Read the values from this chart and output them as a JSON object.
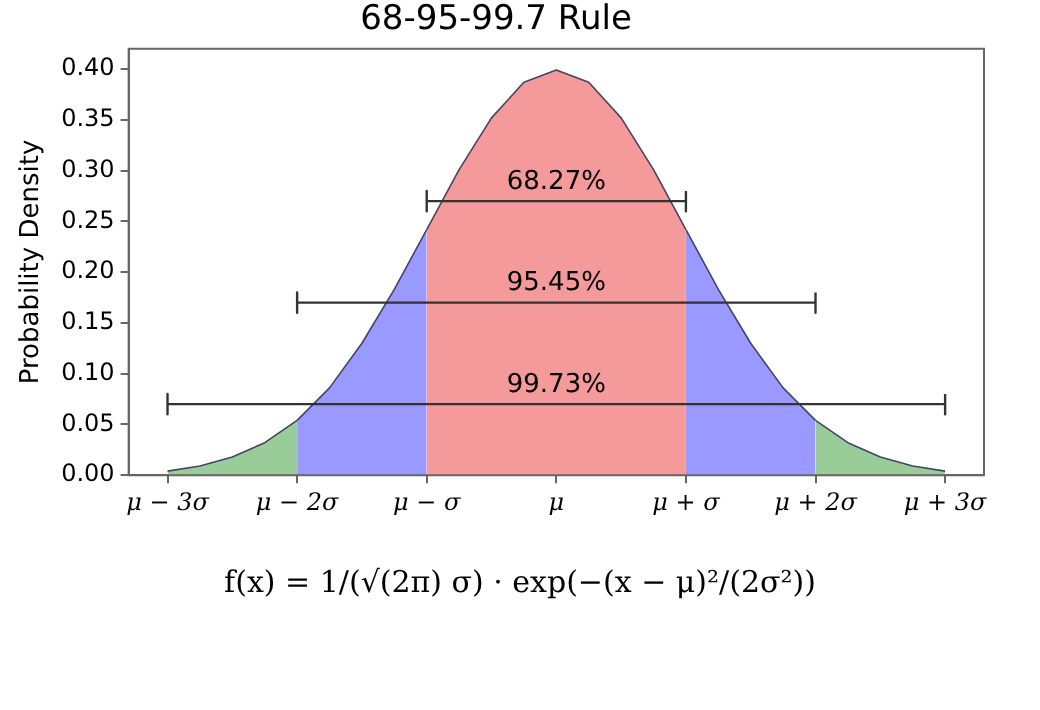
{
  "chart_data": {
    "type": "area",
    "title": "68-95-99.7 Rule",
    "ylabel": "Probability Density",
    "xlim": [
      -3.3,
      3.3
    ],
    "ylim": [
      0,
      0.42
    ],
    "xticks": [
      {
        "value": -3,
        "label": "μ − 3σ"
      },
      {
        "value": -2,
        "label": "μ − 2σ"
      },
      {
        "value": -1,
        "label": "μ − σ"
      },
      {
        "value": 0,
        "label": "μ"
      },
      {
        "value": 1,
        "label": "μ + σ"
      },
      {
        "value": 2,
        "label": "μ + 2σ"
      },
      {
        "value": 3,
        "label": "μ + 3σ"
      }
    ],
    "yticks": [
      {
        "value": 0,
        "label": "0.00"
      },
      {
        "value": 0.05,
        "label": "0.05"
      },
      {
        "value": 0.1,
        "label": "0.10"
      },
      {
        "value": 0.15,
        "label": "0.15"
      },
      {
        "value": 0.2,
        "label": "0.20"
      },
      {
        "value": 0.25,
        "label": "0.25"
      },
      {
        "value": 0.3,
        "label": "0.30"
      },
      {
        "value": 0.35,
        "label": "0.35"
      },
      {
        "value": 0.4,
        "label": "0.40"
      }
    ],
    "grid": false,
    "legend": false,
    "series": [
      {
        "color": "#99cc99",
        "x": [
          -3,
          -2.75,
          -2.5,
          -2.25,
          -2
        ],
        "values": [
          0.004,
          0.009,
          0.018,
          0.032,
          0.054
        ]
      },
      {
        "color": "#9999ff",
        "x": [
          -2,
          -1.75,
          -1.5,
          -1.25,
          -1
        ],
        "values": [
          0.054,
          0.086,
          0.13,
          0.183,
          0.242
        ]
      },
      {
        "color": "#f59a9a",
        "x": [
          -1,
          -0.75,
          -0.5,
          -0.25,
          0,
          0.25,
          0.5,
          0.75,
          1
        ],
        "values": [
          0.242,
          0.301,
          0.352,
          0.387,
          0.399,
          0.387,
          0.352,
          0.301,
          0.242
        ]
      },
      {
        "color": "#9999ff",
        "x": [
          1,
          1.25,
          1.5,
          1.75,
          2
        ],
        "values": [
          0.242,
          0.183,
          0.13,
          0.086,
          0.054
        ]
      },
      {
        "color": "#99cc99",
        "x": [
          2,
          2.25,
          2.5,
          2.75,
          3
        ],
        "values": [
          0.054,
          0.032,
          0.018,
          0.009,
          0.004
        ]
      },
      {
        "type": "line",
        "color": "#333333",
        "x": [
          -1,
          -1,
          -1,
          1,
          1,
          1
        ],
        "values": [
          0.28,
          0.26,
          0.27,
          0.27,
          0.26,
          0.28
        ]
      },
      {
        "type": "line",
        "color": "#333333",
        "x": [
          -2,
          -2,
          -2,
          2,
          2,
          2
        ],
        "values": [
          0.18,
          0.16,
          0.17,
          0.17,
          0.16,
          0.18
        ]
      },
      {
        "type": "line",
        "color": "#333333",
        "x": [
          -3,
          -3,
          -3,
          3,
          3,
          3
        ],
        "values": [
          0.08,
          0.06,
          0.07,
          0.07,
          0.06,
          0.08
        ]
      }
    ],
    "annotations": [
      {
        "text": "68.27%",
        "y": 0.27
      },
      {
        "text": "95.45%",
        "y": 0.17
      },
      {
        "text": "99.73%",
        "y": 0.07
      },
      "f(x) = 1/(√(2π) σ) · exp(−(x − μ)²/(2σ²))"
    ]
  }
}
